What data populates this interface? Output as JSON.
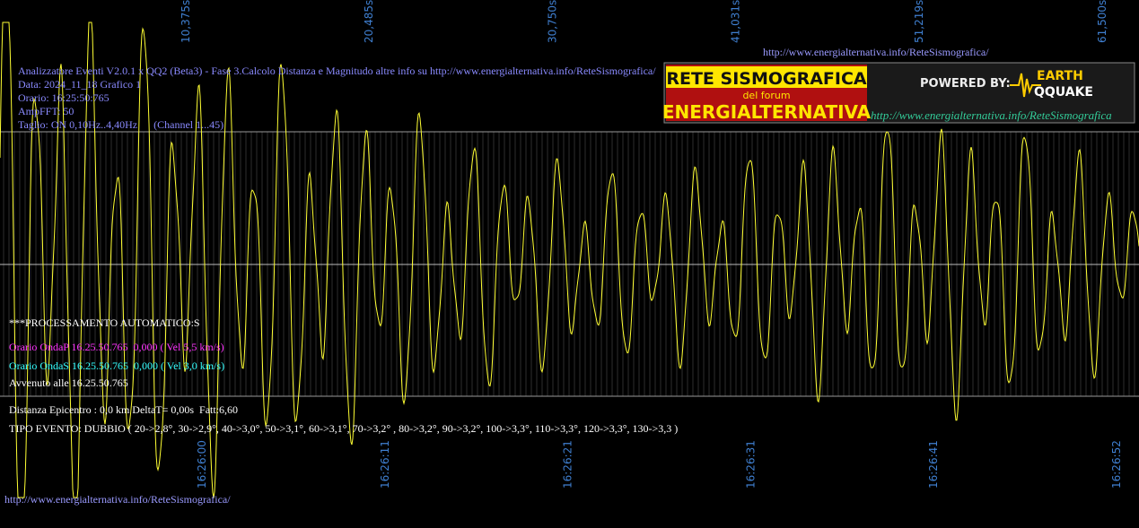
{
  "time_labels_top": [
    "10,375s",
    "20,485s",
    "30,750s",
    "41,031s",
    "51,219s",
    "61,500s"
  ],
  "header_url": "http://www.energialternativa.info/ReteSismografica/",
  "info": {
    "title": "Analizzatore Eventi V2.0.1 x QQ2 (Beta3) - Fase 3.Calcolo Distanza e Magnitudo altre info su http://www.energialternativa.info/ReteSismografica/",
    "date": "Data: 2024_11_18 Grafico 1",
    "time": "Orario: 16:25:50:765",
    "amp_fft": "AmpFFT: 50",
    "filter": "Taglio: ON 0,10Hz..4,40Hz      (Channel 1...45)"
  },
  "processing": {
    "heading": "***PROCESSAMENTO AUTOMATICO:S",
    "wave_p": "Orario OndaP 16.25.50.765  0,000 ( Vel 5,5 km/s)",
    "wave_s": "Orario OndaS 16.25.50.765  0,000 ( Vel 3,0 km/s)",
    "occurred": "Avvenuto alle 16.25.50.765",
    "distance": "Distanza Epicentro : 0,0 km DeltaT= 0,00s  Fatt:6,60",
    "event_type": "TIPO EVENTO: DUBBIO ( 20->2,8°, 30->2,9°, 40->3,0°, 50->3,1°, 60->3,1°, 70->3,2° , 80->3,2°, 90->3,2°, 100->3,3°, 110->3,3°, 120->3,3°, 130->3,3 )"
  },
  "time_labels_bottom": [
    "16:26:00",
    "16:26:11",
    "16:26:21",
    "16:26:31",
    "16:26:41",
    "16:26:52"
  ],
  "footer_url": "http://www.energialternativa.info/ReteSismografica/",
  "logo": {
    "line1": "RETE SISMOGRAFICA",
    "line2": "del forum",
    "line3": "ENERGIALTERNATIVA",
    "powered": "POWERED BY:",
    "brand1": "EARTH",
    "brand2": "QQUAKE",
    "url": "http://www.energialternativa.info/ReteSismografica"
  }
}
